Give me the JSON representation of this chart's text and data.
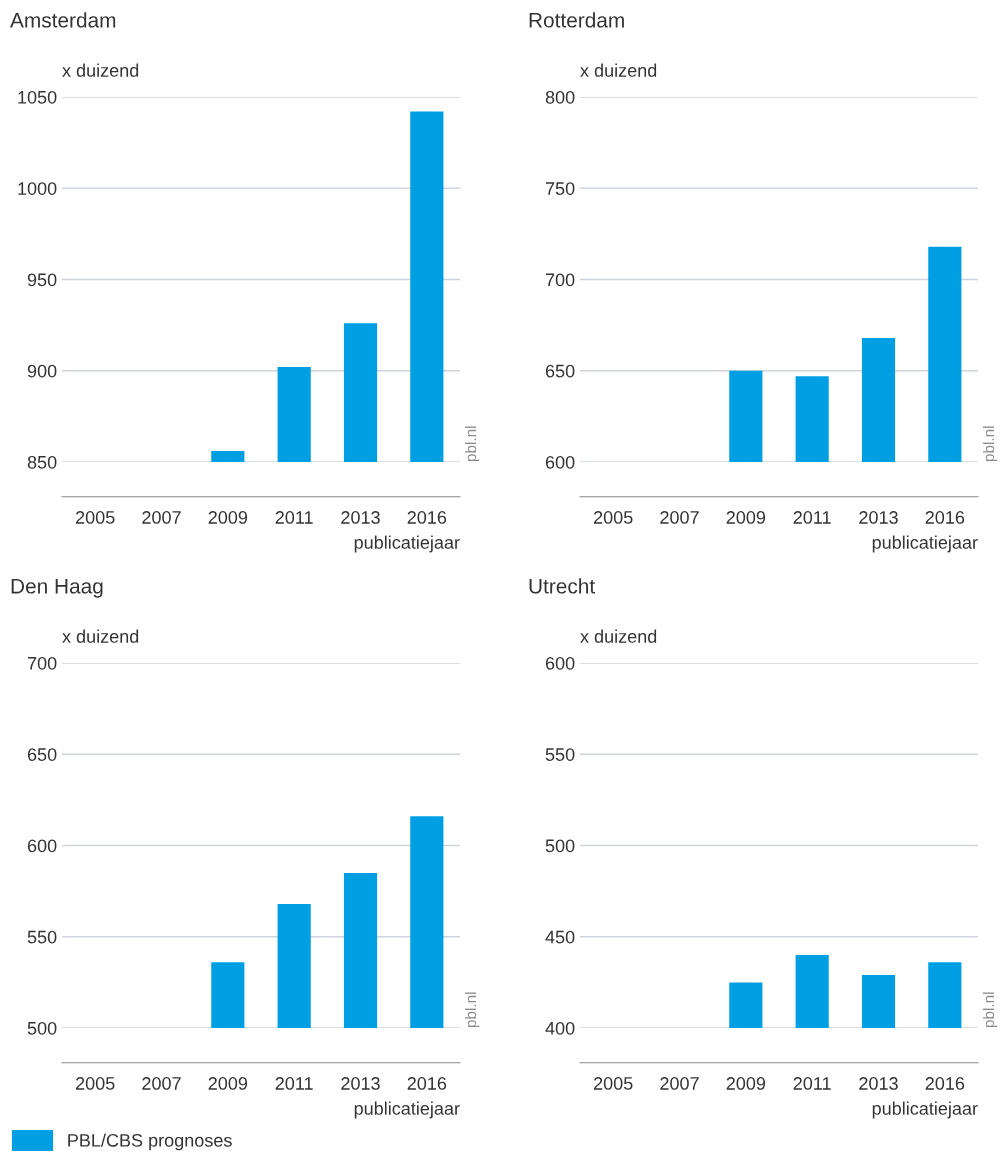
{
  "chart_data": [
    {
      "type": "bar",
      "title": "Amsterdam",
      "ylabel": "x duizend",
      "xlabel": "publicatiejaar",
      "categories": [
        "2005",
        "2007",
        "2009",
        "2011",
        "2013",
        "2016"
      ],
      "series": [
        {
          "color": "#009fe3",
          "values": [
            null,
            null,
            856,
            902,
            926,
            1042
          ]
        }
      ],
      "ylim": [
        850,
        1050
      ],
      "yticks": [
        850,
        900,
        950,
        1000,
        1050
      ],
      "grid": "y",
      "annotations": [
        "pbl.nl"
      ]
    },
    {
      "type": "bar",
      "title": "Rotterdam",
      "ylabel": "x duizend",
      "xlabel": "publicatiejaar",
      "categories": [
        "2005",
        "2007",
        "2009",
        "2011",
        "2013",
        "2016"
      ],
      "series": [
        {
          "color": "#009fe3",
          "values": [
            null,
            null,
            650,
            647,
            668,
            718
          ]
        }
      ],
      "ylim": [
        600,
        800
      ],
      "yticks": [
        600,
        650,
        700,
        750,
        800
      ],
      "grid": "y",
      "annotations": [
        "pbl.nl"
      ]
    },
    {
      "type": "bar",
      "title": "Den Haag",
      "ylabel": "x duizend",
      "xlabel": "publicatiejaar",
      "categories": [
        "2005",
        "2007",
        "2009",
        "2011",
        "2013",
        "2016"
      ],
      "series": [
        {
          "color": "#009fe3",
          "values": [
            null,
            null,
            536,
            568,
            585,
            616
          ]
        }
      ],
      "ylim": [
        500,
        700
      ],
      "yticks": [
        500,
        550,
        600,
        650,
        700
      ],
      "grid": "y",
      "annotations": [
        "pbl.nl"
      ]
    },
    {
      "type": "bar",
      "title": "Utrecht",
      "ylabel": "x duizend",
      "xlabel": "publicatiejaar",
      "categories": [
        "2005",
        "2007",
        "2009",
        "2011",
        "2013",
        "2016"
      ],
      "series": [
        {
          "name": "PBL/CBS prognoses",
          "color": "#009fe3",
          "values": [
            null,
            null,
            425,
            440,
            429,
            436
          ]
        }
      ],
      "ylim": [
        400,
        600
      ],
      "yticks": [
        400,
        450,
        500,
        550,
        600
      ],
      "grid": "y",
      "legend": "bottom",
      "annotations": [
        "pbl.nl"
      ]
    }
  ]
}
